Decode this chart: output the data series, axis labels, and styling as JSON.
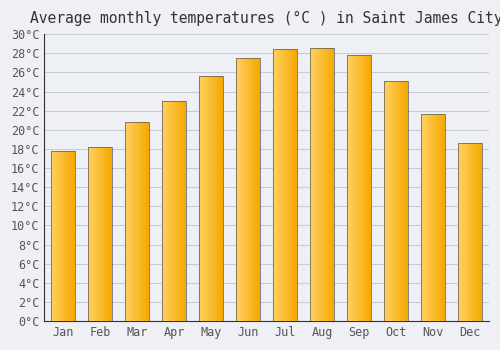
{
  "title": "Average monthly temperatures (°C ) in Saint James City",
  "months": [
    "Jan",
    "Feb",
    "Mar",
    "Apr",
    "May",
    "Jun",
    "Jul",
    "Aug",
    "Sep",
    "Oct",
    "Nov",
    "Dec"
  ],
  "values": [
    17.8,
    18.2,
    20.8,
    23.0,
    25.6,
    27.5,
    28.5,
    28.6,
    27.8,
    25.1,
    21.7,
    18.6
  ],
  "bar_color_dark": "#F5A800",
  "bar_color_light": "#FFD060",
  "bar_edge_color": "#555555",
  "background_color": "#eef0f5",
  "plot_bg_color": "#eef0f5",
  "grid_color": "#c8ccd8",
  "tick_label_color": "#555555",
  "title_color": "#333333",
  "ylim": [
    0,
    30
  ],
  "ytick_step": 2,
  "title_fontsize": 10.5,
  "tick_fontsize": 8.5
}
